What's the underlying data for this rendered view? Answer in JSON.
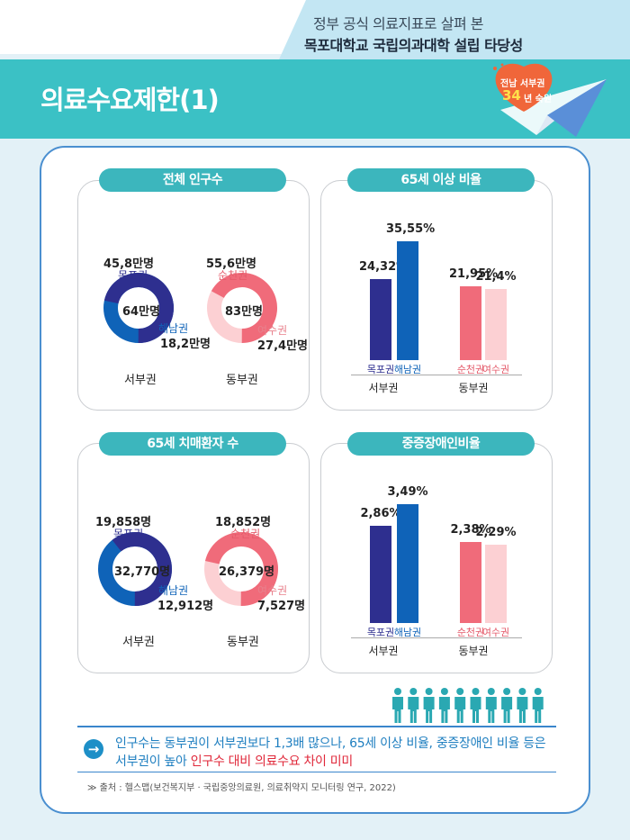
{
  "header": {
    "subtitle": "정부 공식 의료지표로 살펴 본",
    "title": "목포대학교 국립의과대학 설립 타당성"
  },
  "banner": {
    "title": "의료수요제한(1)",
    "badge_line1": "전남 서부권",
    "badge_num": "34",
    "badge_line2": "년 숙원"
  },
  "cards": {
    "population": {
      "title": "전체 인구수",
      "west": {
        "total": "64만명",
        "a_label": "목포권",
        "a_value": "45,8만명",
        "b_label": "해남권",
        "b_value": "18,2만명",
        "region": "서부권",
        "a_share": 0.716
      },
      "east": {
        "total": "83만명",
        "a_label": "순천권",
        "a_value": "55,6만명",
        "b_label": "여수권",
        "b_value": "27,4만명",
        "region": "동부권",
        "a_share": 0.67
      }
    },
    "elderly": {
      "title": "65세 이상 비율",
      "bars": [
        {
          "label": "목포권",
          "value": 24.32,
          "text": "24,32%",
          "color": "#2e2f8f",
          "labelColor": "#2e2f8f"
        },
        {
          "label": "해남권",
          "value": 35.55,
          "text": "35,55%",
          "color": "#0f63b8",
          "labelColor": "#0f63b8"
        },
        {
          "label": "순천권",
          "value": 21.95,
          "text": "21,95%",
          "color": "#f06b7a",
          "labelColor": "#e45a6a"
        },
        {
          "label": "여수권",
          "value": 21.4,
          "text": "21,4%",
          "color": "#fcd0d3",
          "labelColor": "#e45a6a"
        }
      ],
      "groups": [
        "서부권",
        "동부권"
      ]
    },
    "dementia": {
      "title": "65세 치매환자 수",
      "west": {
        "total": "32,770명",
        "a_label": "목포권",
        "a_value": "19,858명",
        "b_label": "해남권",
        "b_value": "12,912명",
        "region": "서부권",
        "a_share": 0.606
      },
      "east": {
        "total": "26,379명",
        "a_label": "순천권",
        "a_value": "18,852명",
        "b_label": "여수권",
        "b_value": "7,527명",
        "region": "동부권",
        "a_share": 0.715
      }
    },
    "disability": {
      "title": "중증장애인비율",
      "bars": [
        {
          "label": "목포권",
          "value": 2.86,
          "text": "2,86%",
          "color": "#2e2f8f",
          "labelColor": "#2e2f8f"
        },
        {
          "label": "해남권",
          "value": 3.49,
          "text": "3,49%",
          "color": "#0f63b8",
          "labelColor": "#0f63b8"
        },
        {
          "label": "순천권",
          "value": 2.38,
          "text": "2,38%",
          "color": "#f06b7a",
          "labelColor": "#e45a6a"
        },
        {
          "label": "여수권",
          "value": 2.29,
          "text": "2,29%",
          "color": "#fcd0d3",
          "labelColor": "#e45a6a"
        }
      ],
      "groups": [
        "서부권",
        "동부권"
      ]
    }
  },
  "colors": {
    "west_a": "#2e2f8f",
    "west_b": "#0f63b8",
    "east_a": "#f06b7a",
    "east_b": "#fcd0d3",
    "teal": "#3cb6bd"
  },
  "summary": {
    "line1": "인구수는 동부권이 서부권보다 1,3배 많으나, 65세 이상 비율, 중증장애인 비율 등은",
    "line2_start": "서부권이 높아 ",
    "line2_highlight": "인구수 대비 의료수요 차이 미미"
  },
  "source": "≫ 출처 : 헬스맵(보건복지부 · 국립중앙의료원, 의료취약지 모니터링 연구, 2022)"
}
